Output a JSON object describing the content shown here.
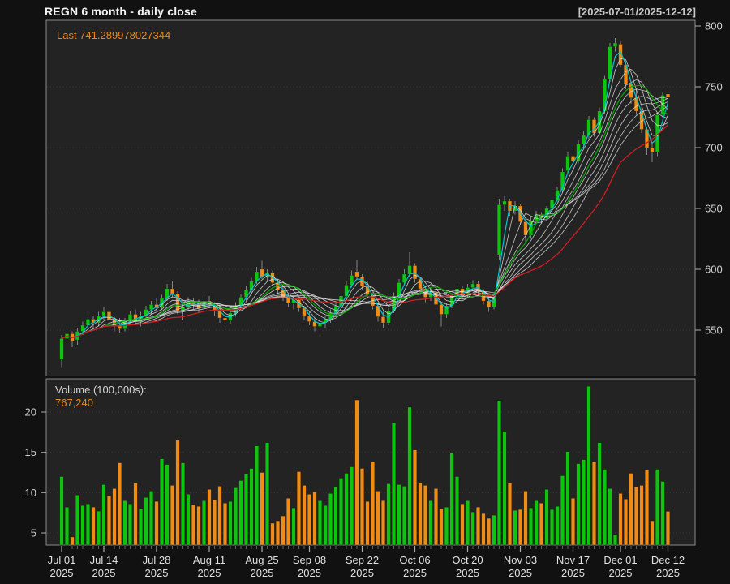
{
  "header": {
    "title": "REGN  6 month - daily close",
    "date_range": "[2025-07-01/2025-12-12]"
  },
  "legends": {
    "last_price_label": "Last 741.289978027344",
    "volume_label": "Volume (100,000s):",
    "volume_value": "767,240"
  },
  "colors": {
    "page_bg": "#111111",
    "panel_bg": "#232323",
    "panel_border": "#8a8a8a",
    "grid": "#3a3a3a",
    "axis_text": "#d0d0d0",
    "tick": "#aaaaaa",
    "minor_tick": "#5f5f5f",
    "up": "#0fc40f",
    "down": "#ef8b17",
    "wick": "#909090",
    "ma_white": "#e2e2e2",
    "ma_cyan": "#00c6cc",
    "ma_green": "#00aa00",
    "ma_red": "#cf1f1f",
    "legend_orange": "#e6891e"
  },
  "chart_data": {
    "type": "candlestick+volume",
    "title": "REGN 6 month - daily close",
    "date_range": "2025-07-01/2025-12-12",
    "last_close": 741.289978027344,
    "last_volume_shares": 767240,
    "volume_units": "100,000s",
    "y_axis_price": {
      "ticks": [
        550,
        600,
        650,
        700,
        750,
        800
      ],
      "range": [
        513,
        805
      ]
    },
    "y_axis_volume": {
      "ticks": [
        5,
        10,
        15,
        20
      ],
      "range": [
        3.5,
        24.2
      ]
    },
    "x_labels": [
      {
        "text": "Jul 01",
        "year": "2025",
        "day_index": 0
      },
      {
        "text": "Jul 14",
        "year": "2025",
        "day_index": 8
      },
      {
        "text": "Jul 28",
        "year": "2025",
        "day_index": 18
      },
      {
        "text": "Aug 11",
        "year": "2025",
        "day_index": 28
      },
      {
        "text": "Aug 25",
        "year": "2025",
        "day_index": 38
      },
      {
        "text": "Sep 08",
        "year": "2025",
        "day_index": 47
      },
      {
        "text": "Sep 22",
        "year": "2025",
        "day_index": 57
      },
      {
        "text": "Oct 06",
        "year": "2025",
        "day_index": 67
      },
      {
        "text": "Oct 20",
        "year": "2025",
        "day_index": 77
      },
      {
        "text": "Nov 03",
        "year": "2025",
        "day_index": 87
      },
      {
        "text": "Nov 17",
        "year": "2025",
        "day_index": 97
      },
      {
        "text": "Dec 01",
        "year": "2025",
        "day_index": 106
      },
      {
        "text": "Dec 12",
        "year": "2025",
        "day_index": 115
      }
    ],
    "overlays": {
      "ribbon_white_periods": [
        4,
        6,
        8,
        10,
        12,
        14,
        16,
        18
      ],
      "cyan_period": 3,
      "green_period": 9,
      "red_period": 24
    },
    "columns": [
      "date",
      "open",
      "high",
      "low",
      "close",
      "volume_100k"
    ],
    "days": [
      [
        "2025-07-01",
        526,
        546,
        519,
        543,
        12.0
      ],
      [
        "2025-07-02",
        543,
        551,
        540,
        547,
        8.2
      ],
      [
        "2025-07-03",
        547,
        549,
        536,
        541,
        4.5
      ],
      [
        "2025-07-07",
        542,
        552,
        538,
        549,
        9.7
      ],
      [
        "2025-07-08",
        549,
        557,
        546,
        554,
        8.4
      ],
      [
        "2025-07-09",
        554,
        563,
        551,
        559,
        8.6
      ],
      [
        "2025-07-10",
        559,
        562,
        551,
        556,
        8.2
      ],
      [
        "2025-07-11",
        556,
        565,
        553,
        562,
        7.7
      ],
      [
        "2025-07-14",
        562,
        569,
        558,
        565,
        11.0
      ],
      [
        "2025-07-15",
        565,
        567,
        555,
        559,
        9.6
      ],
      [
        "2025-07-16",
        559,
        561,
        549,
        554,
        10.5
      ],
      [
        "2025-07-17",
        554,
        560,
        548,
        551,
        13.7
      ],
      [
        "2025-07-18",
        551,
        560,
        549,
        558,
        9.0
      ],
      [
        "2025-07-21",
        558,
        566,
        556,
        563,
        8.6
      ],
      [
        "2025-07-22",
        563,
        567,
        554,
        557,
        11.2
      ],
      [
        "2025-07-23",
        557,
        565,
        553,
        562,
        8.0
      ],
      [
        "2025-07-24",
        562,
        570,
        559,
        567,
        9.4
      ],
      [
        "2025-07-25",
        567,
        574,
        563,
        571,
        10.2
      ],
      [
        "2025-07-28",
        571,
        576,
        566,
        569,
        8.9
      ],
      [
        "2025-07-29",
        569,
        579,
        567,
        576,
        14.2
      ],
      [
        "2025-07-30",
        576,
        588,
        574,
        584,
        13.5
      ],
      [
        "2025-07-31",
        584,
        590,
        577,
        580,
        10.9
      ],
      [
        "2025-08-01",
        580,
        582,
        563,
        566,
        16.5
      ],
      [
        "2025-08-04",
        566,
        572,
        558,
        569,
        13.7
      ],
      [
        "2025-08-05",
        569,
        577,
        566,
        574,
        9.8
      ],
      [
        "2025-08-06",
        574,
        576,
        567,
        571,
        8.5
      ],
      [
        "2025-08-07",
        571,
        575,
        564,
        568,
        8.3
      ],
      [
        "2025-08-08",
        568,
        577,
        565,
        574,
        9.0
      ],
      [
        "2025-08-11",
        574,
        578,
        568,
        571,
        10.4
      ],
      [
        "2025-08-12",
        571,
        573,
        562,
        566,
        9.1
      ],
      [
        "2025-08-13",
        566,
        568,
        556,
        560,
        10.8
      ],
      [
        "2025-08-14",
        560,
        565,
        554,
        558,
        8.7
      ],
      [
        "2025-08-15",
        558,
        567,
        555,
        564,
        8.9
      ],
      [
        "2025-08-18",
        564,
        573,
        561,
        570,
        10.6
      ],
      [
        "2025-08-19",
        570,
        580,
        568,
        577,
        11.5
      ],
      [
        "2025-08-20",
        577,
        586,
        574,
        583,
        12.3
      ],
      [
        "2025-08-21",
        583,
        593,
        581,
        590,
        13.0
      ],
      [
        "2025-08-22",
        590,
        602,
        588,
        598,
        15.8
      ],
      [
        "2025-08-25",
        600,
        607,
        592,
        594,
        12.5
      ],
      [
        "2025-08-26",
        594,
        600,
        590,
        597,
        16.2
      ],
      [
        "2025-08-27",
        597,
        599,
        586,
        589,
        6.2
      ],
      [
        "2025-08-28",
        589,
        592,
        580,
        583,
        6.5
      ],
      [
        "2025-08-29",
        583,
        586,
        574,
        577,
        7.1
      ],
      [
        "2025-09-02",
        577,
        580,
        569,
        572,
        9.3
      ],
      [
        "2025-09-03",
        572,
        578,
        567,
        575,
        8.1
      ],
      [
        "2025-09-04",
        575,
        576,
        565,
        568,
        12.6
      ],
      [
        "2025-09-05",
        568,
        570,
        558,
        562,
        10.9
      ],
      [
        "2025-09-08",
        562,
        566,
        554,
        557,
        9.8
      ],
      [
        "2025-09-09",
        557,
        560,
        549,
        553,
        10.1
      ],
      [
        "2025-09-10",
        553,
        559,
        547,
        556,
        9.0
      ],
      [
        "2025-09-11",
        556,
        562,
        552,
        559,
        8.4
      ],
      [
        "2025-09-12",
        559,
        567,
        556,
        564,
        9.9
      ],
      [
        "2025-09-15",
        564,
        573,
        562,
        570,
        10.7
      ],
      [
        "2025-09-16",
        570,
        581,
        568,
        578,
        11.8
      ],
      [
        "2025-09-17",
        578,
        590,
        576,
        587,
        12.4
      ],
      [
        "2025-09-18",
        587,
        599,
        585,
        595,
        13.2
      ],
      [
        "2025-09-19",
        598,
        608,
        592,
        594,
        21.5
      ],
      [
        "2025-09-22",
        594,
        596,
        583,
        586,
        13.0
      ],
      [
        "2025-09-23",
        586,
        590,
        576,
        579,
        8.9
      ],
      [
        "2025-09-24",
        579,
        581,
        567,
        570,
        13.8
      ],
      [
        "2025-09-25",
        570,
        572,
        557,
        561,
        10.2
      ],
      [
        "2025-09-26",
        561,
        565,
        552,
        556,
        9.0
      ],
      [
        "2025-09-29",
        556,
        568,
        554,
        566,
        11.1
      ],
      [
        "2025-09-30",
        566,
        581,
        564,
        578,
        18.7
      ],
      [
        "2025-10-01",
        578,
        592,
        576,
        589,
        11.0
      ],
      [
        "2025-10-02",
        589,
        600,
        587,
        596,
        10.8
      ],
      [
        "2025-10-03",
        596,
        614,
        594,
        603,
        20.6
      ],
      [
        "2025-10-06",
        603,
        605,
        589,
        592,
        15.3
      ],
      [
        "2025-10-07",
        592,
        594,
        580,
        584,
        11.2
      ],
      [
        "2025-10-08",
        584,
        586,
        573,
        577,
        10.9
      ],
      [
        "2025-10-09",
        577,
        585,
        574,
        581,
        9.0
      ],
      [
        "2025-10-10",
        581,
        583,
        567,
        571,
        10.5
      ],
      [
        "2025-10-13",
        571,
        573,
        553,
        563,
        8.0
      ],
      [
        "2025-10-14",
        563,
        572,
        560,
        570,
        8.2
      ],
      [
        "2025-10-15",
        570,
        580,
        568,
        578,
        14.9
      ],
      [
        "2025-10-16",
        578,
        587,
        576,
        584,
        12.0
      ],
      [
        "2025-10-17",
        584,
        586,
        575,
        579,
        8.6
      ],
      [
        "2025-10-20",
        579,
        588,
        577,
        585,
        9.0
      ],
      [
        "2025-10-21",
        585,
        591,
        583,
        588,
        7.6
      ],
      [
        "2025-10-22",
        588,
        590,
        578,
        582,
        8.2
      ],
      [
        "2025-10-23",
        582,
        584,
        571,
        574,
        7.4
      ],
      [
        "2025-10-24",
        574,
        576,
        565,
        569,
        6.8
      ],
      [
        "2025-10-27",
        569,
        578,
        567,
        576,
        7.2
      ],
      [
        "2025-10-28",
        612,
        658,
        608,
        653,
        21.4
      ],
      [
        "2025-10-29",
        653,
        660,
        648,
        656,
        17.6
      ],
      [
        "2025-10-30",
        656,
        658,
        644,
        648,
        11.2
      ],
      [
        "2025-10-31",
        648,
        656,
        645,
        652,
        7.8
      ],
      [
        "2025-11-03",
        652,
        654,
        636,
        639,
        7.9
      ],
      [
        "2025-11-04",
        639,
        641,
        622,
        628,
        10.2
      ],
      [
        "2025-11-05",
        628,
        643,
        625,
        640,
        8.1
      ],
      [
        "2025-11-06",
        640,
        648,
        637,
        645,
        9.0
      ],
      [
        "2025-11-07",
        645,
        647,
        638,
        642,
        8.7
      ],
      [
        "2025-11-10",
        642,
        652,
        640,
        650,
        10.4
      ],
      [
        "2025-11-11",
        650,
        660,
        648,
        657,
        7.9
      ],
      [
        "2025-11-12",
        657,
        668,
        655,
        665,
        8.3
      ],
      [
        "2025-11-13",
        665,
        683,
        663,
        680,
        12.1
      ],
      [
        "2025-11-14",
        681,
        696,
        678,
        693,
        15.1
      ],
      [
        "2025-11-17",
        693,
        697,
        685,
        689,
        9.3
      ],
      [
        "2025-11-18",
        689,
        706,
        687,
        703,
        13.6
      ],
      [
        "2025-11-19",
        703,
        714,
        700,
        710,
        14.1
      ],
      [
        "2025-11-20",
        710,
        726,
        707,
        723,
        23.2
      ],
      [
        "2025-11-21",
        723,
        725,
        709,
        712,
        13.8
      ],
      [
        "2025-11-24",
        712,
        733,
        710,
        730,
        16.2
      ],
      [
        "2025-11-25",
        730,
        759,
        728,
        756,
        12.9
      ],
      [
        "2025-11-26",
        756,
        786,
        754,
        783,
        10.5
      ],
      [
        "2025-11-28",
        783,
        790,
        779,
        786,
        4.8
      ],
      [
        "2025-12-01",
        785,
        788,
        766,
        768,
        9.9
      ],
      [
        "2025-12-02",
        768,
        771,
        748,
        752,
        9.2
      ],
      [
        "2025-12-03",
        752,
        755,
        736,
        741,
        12.4
      ],
      [
        "2025-12-04",
        741,
        748,
        727,
        730,
        10.7
      ],
      [
        "2025-12-05",
        730,
        733,
        712,
        715,
        10.9
      ],
      [
        "2025-12-08",
        715,
        717,
        694,
        700,
        12.8
      ],
      [
        "2025-12-09",
        700,
        703,
        688,
        696,
        6.5
      ],
      [
        "2025-12-10",
        696,
        729,
        693,
        727,
        12.9
      ],
      [
        "2025-12-11",
        727,
        746,
        725,
        743,
        11.4
      ],
      [
        "2025-12-12",
        744,
        747,
        736,
        741.289978027344,
        7.6724
      ]
    ]
  }
}
